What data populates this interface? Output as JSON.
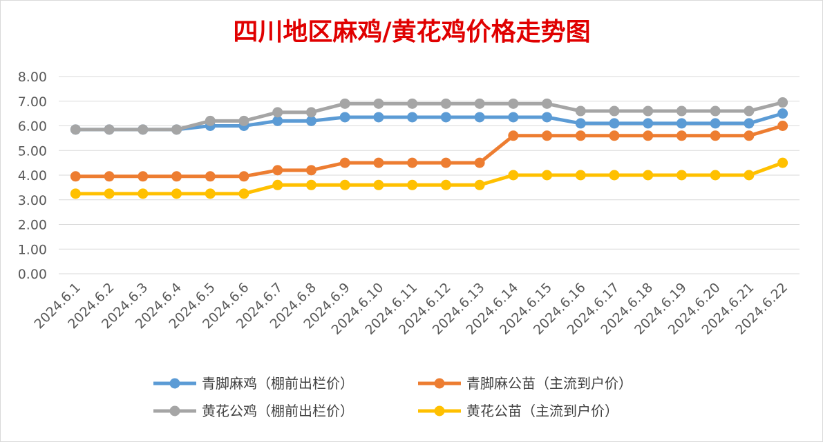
{
  "chart_data": {
    "type": "line",
    "title": "四川地区麻鸡/黄花鸡价格走势图",
    "xlabel": "",
    "ylabel": "",
    "ylim": [
      0,
      8
    ],
    "yticks": [
      "0.00",
      "1.00",
      "2.00",
      "3.00",
      "4.00",
      "5.00",
      "6.00",
      "7.00",
      "8.00"
    ],
    "grid": true,
    "legend_position": "bottom",
    "categories": [
      "2024.6.1",
      "2024.6.2",
      "2024.6.3",
      "2024.6.4",
      "2024.6.5",
      "2024.6.6",
      "2024.6.7",
      "2024.6.8",
      "2024.6.9",
      "2024.6.10",
      "2024.6.11",
      "2024.6.12",
      "2024.6.13",
      "2024.6.14",
      "2024.6.15",
      "2024.6.16",
      "2024.6.17",
      "2024.6.18",
      "2024.6.19",
      "2024.6.20",
      "2024.6.21",
      "2024.6.22"
    ],
    "series": [
      {
        "name": "青脚麻鸡（棚前出栏价）",
        "color": "#5b9bd5",
        "values": [
          5.85,
          5.85,
          5.85,
          5.85,
          6.0,
          6.0,
          6.2,
          6.2,
          6.35,
          6.35,
          6.35,
          6.35,
          6.35,
          6.35,
          6.35,
          6.1,
          6.1,
          6.1,
          6.1,
          6.1,
          6.1,
          6.5
        ]
      },
      {
        "name": "青脚麻公苗（主流到户价）",
        "color": "#ed7d31",
        "values": [
          3.95,
          3.95,
          3.95,
          3.95,
          3.95,
          3.95,
          4.2,
          4.2,
          4.5,
          4.5,
          4.5,
          4.5,
          4.5,
          5.6,
          5.6,
          5.6,
          5.6,
          5.6,
          5.6,
          5.6,
          5.6,
          6.0
        ]
      },
      {
        "name": "黄花公鸡（棚前出栏价）",
        "color": "#a5a5a5",
        "values": [
          5.85,
          5.85,
          5.85,
          5.85,
          6.2,
          6.2,
          6.55,
          6.55,
          6.9,
          6.9,
          6.9,
          6.9,
          6.9,
          6.9,
          6.9,
          6.6,
          6.6,
          6.6,
          6.6,
          6.6,
          6.6,
          6.95
        ]
      },
      {
        "name": "黄花公苗（主流到户价）",
        "color": "#ffc000",
        "values": [
          3.25,
          3.25,
          3.25,
          3.25,
          3.25,
          3.25,
          3.6,
          3.6,
          3.6,
          3.6,
          3.6,
          3.6,
          3.6,
          4.0,
          4.0,
          4.0,
          4.0,
          4.0,
          4.0,
          4.0,
          4.0,
          4.5
        ]
      }
    ]
  }
}
